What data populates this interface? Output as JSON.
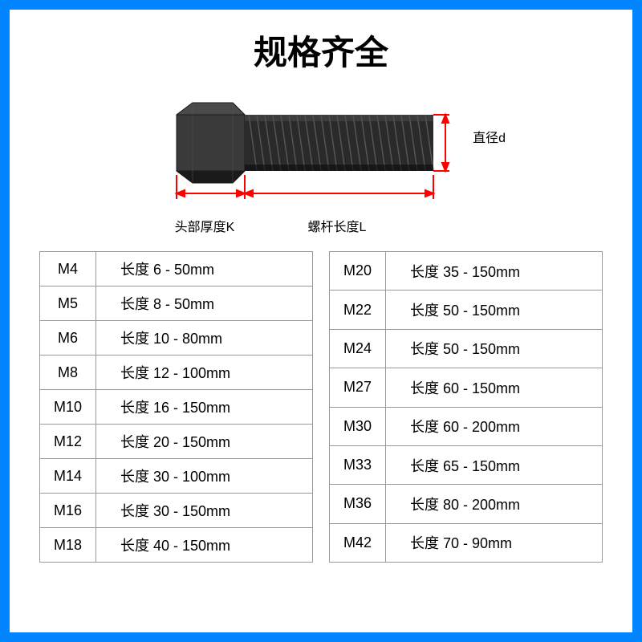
{
  "title": "规格齐全",
  "diagram": {
    "label_diameter": "直径d",
    "label_head_thickness": "头部厚度K",
    "label_shaft_length": "螺杆长度L",
    "bolt_color": "#2a2a2a",
    "dimension_color": "#ff0000"
  },
  "border_color": "#0084ff",
  "table_border_color": "#999999",
  "left_table": {
    "rows": [
      {
        "size": "M4",
        "length": "长度 6 - 50mm"
      },
      {
        "size": "M5",
        "length": "长度 8 - 50mm"
      },
      {
        "size": "M6",
        "length": "长度 10 - 80mm"
      },
      {
        "size": "M8",
        "length": "长度 12 - 100mm"
      },
      {
        "size": "M10",
        "length": "长度 16 - 150mm"
      },
      {
        "size": "M12",
        "length": "长度 20 - 150mm"
      },
      {
        "size": "M14",
        "length": "长度 30 - 100mm"
      },
      {
        "size": "M16",
        "length": "长度 30 - 150mm"
      },
      {
        "size": "M18",
        "length": "长度 40 - 150mm"
      }
    ]
  },
  "right_table": {
    "rows": [
      {
        "size": "M20",
        "length": "长度 35 - 150mm"
      },
      {
        "size": "M22",
        "length": "长度 50 - 150mm"
      },
      {
        "size": "M24",
        "length": "长度 50 - 150mm"
      },
      {
        "size": "M27",
        "length": "长度 60 - 150mm"
      },
      {
        "size": "M30",
        "length": "长度 60 - 200mm"
      },
      {
        "size": "M33",
        "length": "长度 65 - 150mm"
      },
      {
        "size": "M36",
        "length": "长度 80 - 200mm"
      },
      {
        "size": "M42",
        "length": "长度 70 - 90mm"
      }
    ]
  }
}
